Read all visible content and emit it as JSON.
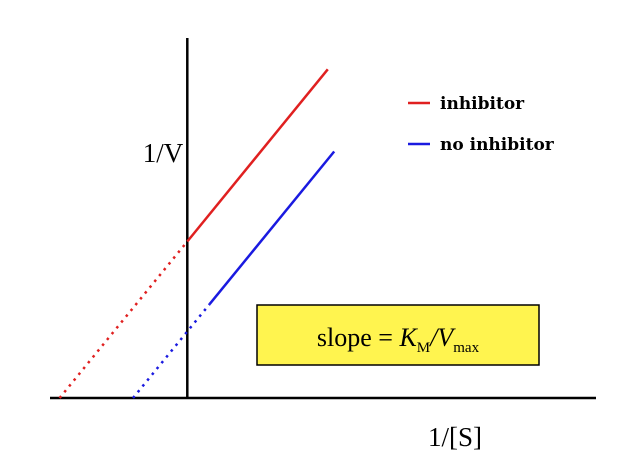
{
  "chart_data": {
    "type": "line",
    "title": "",
    "xlabel": "1/[S]",
    "ylabel": "1/V",
    "xlim": [
      -2.15,
      6.4
    ],
    "ylim": [
      0,
      4.6
    ],
    "grid": false,
    "legend": {
      "position": "top-right",
      "entries": [
        "inhibitor",
        "no inhibitor"
      ]
    },
    "series": [
      {
        "name": "inhibitor",
        "color": "#e02020",
        "extrapolated": {
          "x": [
            -2.0,
            0.0
          ],
          "y": [
            0.0,
            2.0
          ]
        },
        "measured": {
          "x": [
            0.0,
            2.2
          ],
          "y": [
            2.0,
            4.2
          ]
        }
      },
      {
        "name": "no inhibitor",
        "color": "#1a1ae0",
        "extrapolated": {
          "x": [
            -0.85,
            0.35
          ],
          "y": [
            0.0,
            1.2
          ]
        },
        "measured": {
          "x": [
            0.35,
            2.3
          ],
          "y": [
            1.2,
            3.15
          ]
        }
      }
    ],
    "annotation": {
      "text_parts": [
        "slope = ",
        "K",
        "M",
        "/",
        "V",
        "max"
      ],
      "background": "#fff44f"
    }
  }
}
